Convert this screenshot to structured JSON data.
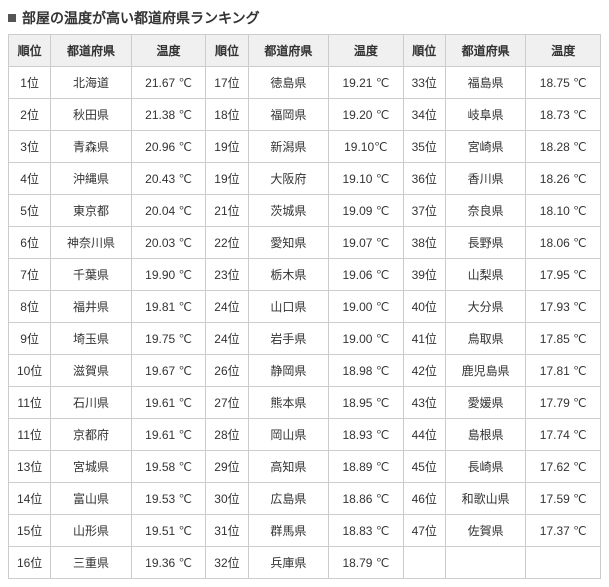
{
  "title": "部屋の温度が高い都道府県ランキング",
  "headers": {
    "rank": "順位",
    "pref": "都道府県",
    "temp": "温度"
  },
  "columns": [
    [
      {
        "rank": "1位",
        "pref": "北海道",
        "temp": "21.67 ℃"
      },
      {
        "rank": "2位",
        "pref": "秋田県",
        "temp": "21.38 ℃"
      },
      {
        "rank": "3位",
        "pref": "青森県",
        "temp": "20.96 ℃"
      },
      {
        "rank": "4位",
        "pref": "沖縄県",
        "temp": "20.43 ℃"
      },
      {
        "rank": "5位",
        "pref": "東京都",
        "temp": "20.04 ℃"
      },
      {
        "rank": "6位",
        "pref": "神奈川県",
        "temp": "20.03 ℃"
      },
      {
        "rank": "7位",
        "pref": "千葉県",
        "temp": "19.90 ℃"
      },
      {
        "rank": "8位",
        "pref": "福井県",
        "temp": "19.81 ℃"
      },
      {
        "rank": "9位",
        "pref": "埼玉県",
        "temp": "19.75 ℃"
      },
      {
        "rank": "10位",
        "pref": "滋賀県",
        "temp": "19.67 ℃"
      },
      {
        "rank": "11位",
        "pref": "石川県",
        "temp": "19.61 ℃"
      },
      {
        "rank": "11位",
        "pref": "京都府",
        "temp": "19.61 ℃"
      },
      {
        "rank": "13位",
        "pref": "宮城県",
        "temp": "19.58 ℃"
      },
      {
        "rank": "14位",
        "pref": "富山県",
        "temp": "19.53 ℃"
      },
      {
        "rank": "15位",
        "pref": "山形県",
        "temp": "19.51 ℃"
      },
      {
        "rank": "16位",
        "pref": "三重県",
        "temp": "19.36 ℃"
      }
    ],
    [
      {
        "rank": "17位",
        "pref": "徳島県",
        "temp": "19.21 ℃"
      },
      {
        "rank": "18位",
        "pref": "福岡県",
        "temp": "19.20 ℃"
      },
      {
        "rank": "19位",
        "pref": "新潟県",
        "temp": "19.10℃"
      },
      {
        "rank": "19位",
        "pref": "大阪府",
        "temp": "19.10 ℃"
      },
      {
        "rank": "21位",
        "pref": "茨城県",
        "temp": "19.09 ℃"
      },
      {
        "rank": "22位",
        "pref": "愛知県",
        "temp": "19.07 ℃"
      },
      {
        "rank": "23位",
        "pref": "栃木県",
        "temp": "19.06 ℃"
      },
      {
        "rank": "24位",
        "pref": "山口県",
        "temp": "19.00 ℃"
      },
      {
        "rank": "24位",
        "pref": "岩手県",
        "temp": "19.00 ℃"
      },
      {
        "rank": "26位",
        "pref": "静岡県",
        "temp": "18.98 ℃"
      },
      {
        "rank": "27位",
        "pref": "熊本県",
        "temp": "18.95 ℃"
      },
      {
        "rank": "28位",
        "pref": "岡山県",
        "temp": "18.93 ℃"
      },
      {
        "rank": "29位",
        "pref": "高知県",
        "temp": "18.89 ℃"
      },
      {
        "rank": "30位",
        "pref": "広島県",
        "temp": "18.86 ℃"
      },
      {
        "rank": "31位",
        "pref": "群馬県",
        "temp": "18.83 ℃"
      },
      {
        "rank": "32位",
        "pref": "兵庫県",
        "temp": "18.79 ℃"
      }
    ],
    [
      {
        "rank": "33位",
        "pref": "福島県",
        "temp": "18.75 ℃"
      },
      {
        "rank": "34位",
        "pref": "岐阜県",
        "temp": "18.73 ℃"
      },
      {
        "rank": "35位",
        "pref": "宮崎県",
        "temp": "18.28 ℃"
      },
      {
        "rank": "36位",
        "pref": "香川県",
        "temp": "18.26 ℃"
      },
      {
        "rank": "37位",
        "pref": "奈良県",
        "temp": "18.10 ℃"
      },
      {
        "rank": "38位",
        "pref": "長野県",
        "temp": "18.06 ℃"
      },
      {
        "rank": "39位",
        "pref": "山梨県",
        "temp": "17.95 ℃"
      },
      {
        "rank": "40位",
        "pref": "大分県",
        "temp": "17.93 ℃"
      },
      {
        "rank": "41位",
        "pref": "鳥取県",
        "temp": "17.85 ℃"
      },
      {
        "rank": "42位",
        "pref": "鹿児島県",
        "temp": "17.81 ℃"
      },
      {
        "rank": "43位",
        "pref": "愛媛県",
        "temp": "17.79 ℃"
      },
      {
        "rank": "44位",
        "pref": "島根県",
        "temp": "17.74 ℃"
      },
      {
        "rank": "45位",
        "pref": "長崎県",
        "temp": "17.62 ℃"
      },
      {
        "rank": "46位",
        "pref": "和歌山県",
        "temp": "17.59 ℃"
      },
      {
        "rank": "47位",
        "pref": "佐賀県",
        "temp": "17.37 ℃"
      },
      {
        "rank": "",
        "pref": "",
        "temp": ""
      }
    ]
  ]
}
